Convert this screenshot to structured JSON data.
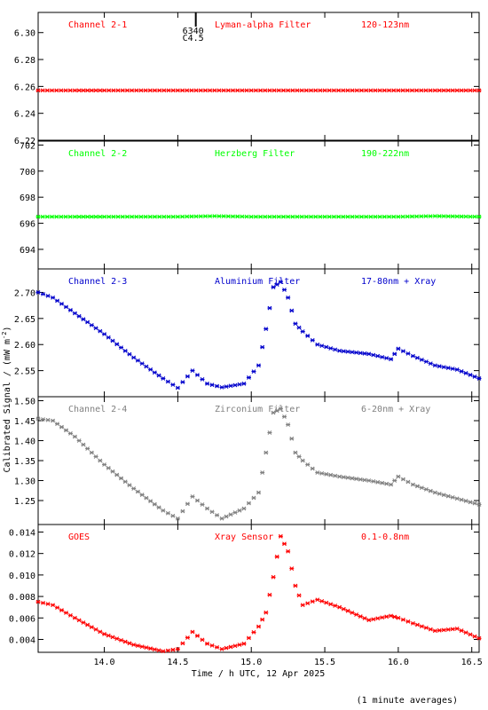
{
  "figure": {
    "ylabel": "Calibrated Signal / (mW m",
    "ylabel_sup": "-2",
    "ylabel_close": ")",
    "xlabel": "Time / h UTC, 12 Apr 2025",
    "footnote": "(1 minute averages)",
    "flare_tag_class": "C4.5",
    "flare_tag_id": "6340",
    "flare_tag_time": 14.55,
    "x_ticks": [
      14.0,
      14.5,
      15.0,
      15.5,
      16.0,
      16.5
    ],
    "x_tick_labels": [
      "14.0",
      "14.5",
      "15.0",
      "15.5",
      "16.0",
      "16.5"
    ]
  },
  "chart_data": [
    {
      "type": "scatter",
      "channel": "Channel 2-1",
      "filter": "Lyman-alpha Filter",
      "band": "120-123nm",
      "color": "#ff0000",
      "xlim": [
        13.55,
        16.55
      ],
      "ylim": [
        6.22,
        6.315
      ],
      "yticks": [
        6.22,
        6.24,
        6.26,
        6.28,
        6.3
      ],
      "ytick_labels": [
        "6.22",
        "6.24",
        "6.26",
        "6.28",
        "6.30"
      ],
      "x": [
        13.55,
        13.8,
        14.0,
        14.25,
        14.5,
        14.75,
        15.0,
        15.25,
        15.5,
        15.75,
        16.0,
        16.25,
        16.55
      ],
      "y": [
        6.257,
        6.257,
        6.257,
        6.257,
        6.257,
        6.257,
        6.257,
        6.257,
        6.257,
        6.257,
        6.257,
        6.257,
        6.257
      ]
    },
    {
      "type": "scatter",
      "channel": "Channel 2-2",
      "filter": "Herzberg Filter",
      "band": "190-222nm",
      "color": "#00ff00",
      "xlim": [
        13.55,
        16.55
      ],
      "ylim": [
        692.5,
        702.3
      ],
      "yticks": [
        694,
        696,
        698,
        700,
        702
      ],
      "ytick_labels": [
        "694",
        "696",
        "698",
        "700",
        "702"
      ],
      "x": [
        13.55,
        13.8,
        14.0,
        14.25,
        14.5,
        14.75,
        15.0,
        15.25,
        15.5,
        15.75,
        16.0,
        16.25,
        16.55
      ],
      "y": [
        696.5,
        696.5,
        696.5,
        696.5,
        696.5,
        696.55,
        696.5,
        696.5,
        696.5,
        696.5,
        696.5,
        696.55,
        696.5
      ]
    },
    {
      "type": "scatter",
      "channel": "Channel 2-3",
      "filter": "Aluminium Filter",
      "band": "17-80nm + Xray",
      "color": "#0000cc",
      "xlim": [
        13.55,
        16.55
      ],
      "ylim": [
        2.5,
        2.745
      ],
      "yticks": [
        2.55,
        2.6,
        2.65,
        2.7
      ],
      "ytick_labels": [
        "2.55",
        "2.60",
        "2.65",
        "2.70"
      ],
      "x": [
        13.55,
        13.65,
        13.8,
        14.0,
        14.2,
        14.4,
        14.5,
        14.6,
        14.7,
        14.8,
        14.95,
        15.05,
        15.1,
        15.15,
        15.2,
        15.25,
        15.3,
        15.35,
        15.45,
        15.6,
        15.8,
        15.95,
        16.0,
        16.1,
        16.25,
        16.4,
        16.55
      ],
      "y": [
        2.7,
        2.69,
        2.66,
        2.62,
        2.575,
        2.535,
        2.517,
        2.55,
        2.525,
        2.518,
        2.525,
        2.56,
        2.63,
        2.71,
        2.72,
        2.69,
        2.64,
        2.625,
        2.6,
        2.588,
        2.582,
        2.572,
        2.592,
        2.578,
        2.56,
        2.552,
        2.535
      ]
    },
    {
      "type": "scatter",
      "channel": "Channel 2-4",
      "filter": "Zirconium Filter",
      "band": "6-20nm + Xray",
      "color": "#808080",
      "xlim": [
        13.55,
        16.55
      ],
      "ylim": [
        1.19,
        1.51
      ],
      "yticks": [
        1.25,
        1.3,
        1.35,
        1.4,
        1.45,
        1.5
      ],
      "ytick_labels": [
        "1.25",
        "1.30",
        "1.35",
        "1.40",
        "1.45",
        "1.50"
      ],
      "x": [
        13.55,
        13.65,
        13.8,
        14.0,
        14.2,
        14.4,
        14.5,
        14.6,
        14.7,
        14.8,
        14.95,
        15.05,
        15.1,
        15.15,
        15.2,
        15.25,
        15.3,
        15.35,
        15.45,
        15.6,
        15.8,
        15.95,
        16.0,
        16.1,
        16.25,
        16.4,
        16.55
      ],
      "y": [
        1.455,
        1.45,
        1.41,
        1.34,
        1.28,
        1.225,
        1.205,
        1.26,
        1.23,
        1.205,
        1.23,
        1.27,
        1.37,
        1.47,
        1.48,
        1.44,
        1.37,
        1.35,
        1.32,
        1.31,
        1.3,
        1.29,
        1.31,
        1.29,
        1.27,
        1.255,
        1.24
      ]
    },
    {
      "type": "scatter",
      "channel": "GOES",
      "filter": "Xray Sensor",
      "band": "0.1-0.8nm",
      "color": "#ff0000",
      "xlim": [
        13.55,
        16.55
      ],
      "ylim": [
        0.0028,
        0.0147
      ],
      "yticks": [
        0.004,
        0.006,
        0.008,
        0.01,
        0.012,
        0.014
      ],
      "ytick_labels": [
        "0.004",
        "0.006",
        "0.008",
        "0.010",
        "0.012",
        "0.014"
      ],
      "x": [
        13.55,
        13.65,
        13.8,
        14.0,
        14.2,
        14.4,
        14.5,
        14.6,
        14.7,
        14.8,
        14.95,
        15.05,
        15.1,
        15.15,
        15.2,
        15.25,
        15.3,
        15.35,
        15.45,
        15.6,
        15.8,
        15.95,
        16.0,
        16.1,
        16.25,
        16.4,
        16.55
      ],
      "y": [
        0.0075,
        0.0072,
        0.006,
        0.0045,
        0.0035,
        0.0029,
        0.0031,
        0.0047,
        0.0036,
        0.0031,
        0.0036,
        0.0052,
        0.0065,
        0.0098,
        0.0136,
        0.0122,
        0.009,
        0.0072,
        0.0077,
        0.007,
        0.0058,
        0.0062,
        0.006,
        0.0055,
        0.0048,
        0.005,
        0.0041
      ]
    }
  ]
}
